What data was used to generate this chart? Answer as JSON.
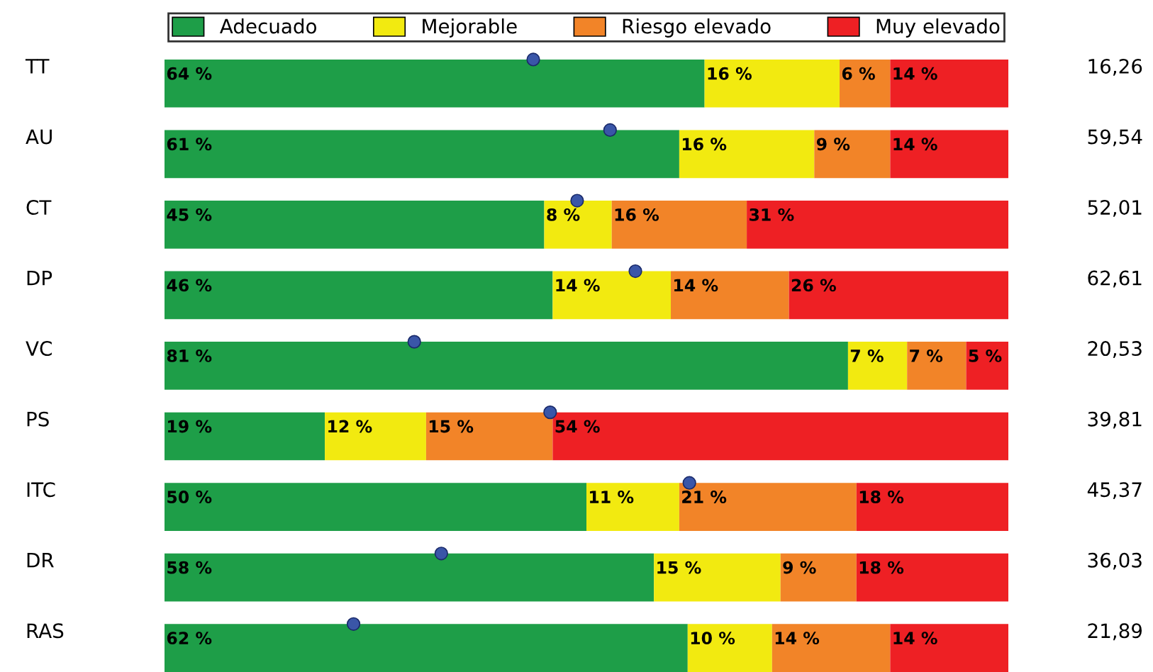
{
  "chart_data": {
    "type": "bar",
    "orientation": "horizontal",
    "stacked": true,
    "legend": "top",
    "categories": [
      "TT",
      "AU",
      "CT",
      "DP",
      "VC",
      "PS",
      "ITC",
      "DR",
      "RAS"
    ],
    "series": [
      {
        "name": "Adecuado",
        "color": "#1e9e48",
        "values": [
          64,
          61,
          45,
          46,
          81,
          19,
          50,
          58,
          62
        ],
        "value_labels": [
          "64 %",
          "61 %",
          "45 %",
          "46 %",
          "81 %",
          "19 %",
          "50 %",
          "58 %",
          "62 %"
        ]
      },
      {
        "name": "Mejorable",
        "color": "#f2ea10",
        "values": [
          16,
          16,
          8,
          14,
          7,
          12,
          11,
          15,
          10
        ],
        "value_labels": [
          "16 %",
          "16 %",
          "8 %",
          "14 %",
          "7 %",
          "12 %",
          "11 %",
          "15 %",
          "10 %"
        ]
      },
      {
        "name": "Riesgo elevado",
        "color": "#f28428",
        "values": [
          6,
          9,
          16,
          14,
          7,
          15,
          21,
          9,
          14
        ],
        "value_labels": [
          "6 %",
          "9 %",
          "16 %",
          "14 %",
          "7 %",
          "15 %",
          "21 %",
          "9 %",
          "14 %"
        ]
      },
      {
        "name": "Muy elevado",
        "color": "#ee2024",
        "values": [
          14,
          14,
          31,
          26,
          5,
          54,
          18,
          18,
          14
        ],
        "value_labels": [
          "14 %",
          "14 %",
          "31 %",
          "26 %",
          "5 %",
          "54 %",
          "18 %",
          "18 %",
          "14 %"
        ]
      },
      {
        "type": "scatter",
        "color": "#3a56a8",
        "marker": "circle",
        "values": [
          43.7,
          52.8,
          48.9,
          55.8,
          29.6,
          45.7,
          62.2,
          32.8,
          22.4
        ]
      }
    ],
    "annotations": [
      "16,26",
      "59,54",
      "52,01",
      "62,61",
      "20,53",
      "39,81",
      "45,37",
      "36,03",
      "21,89"
    ]
  }
}
